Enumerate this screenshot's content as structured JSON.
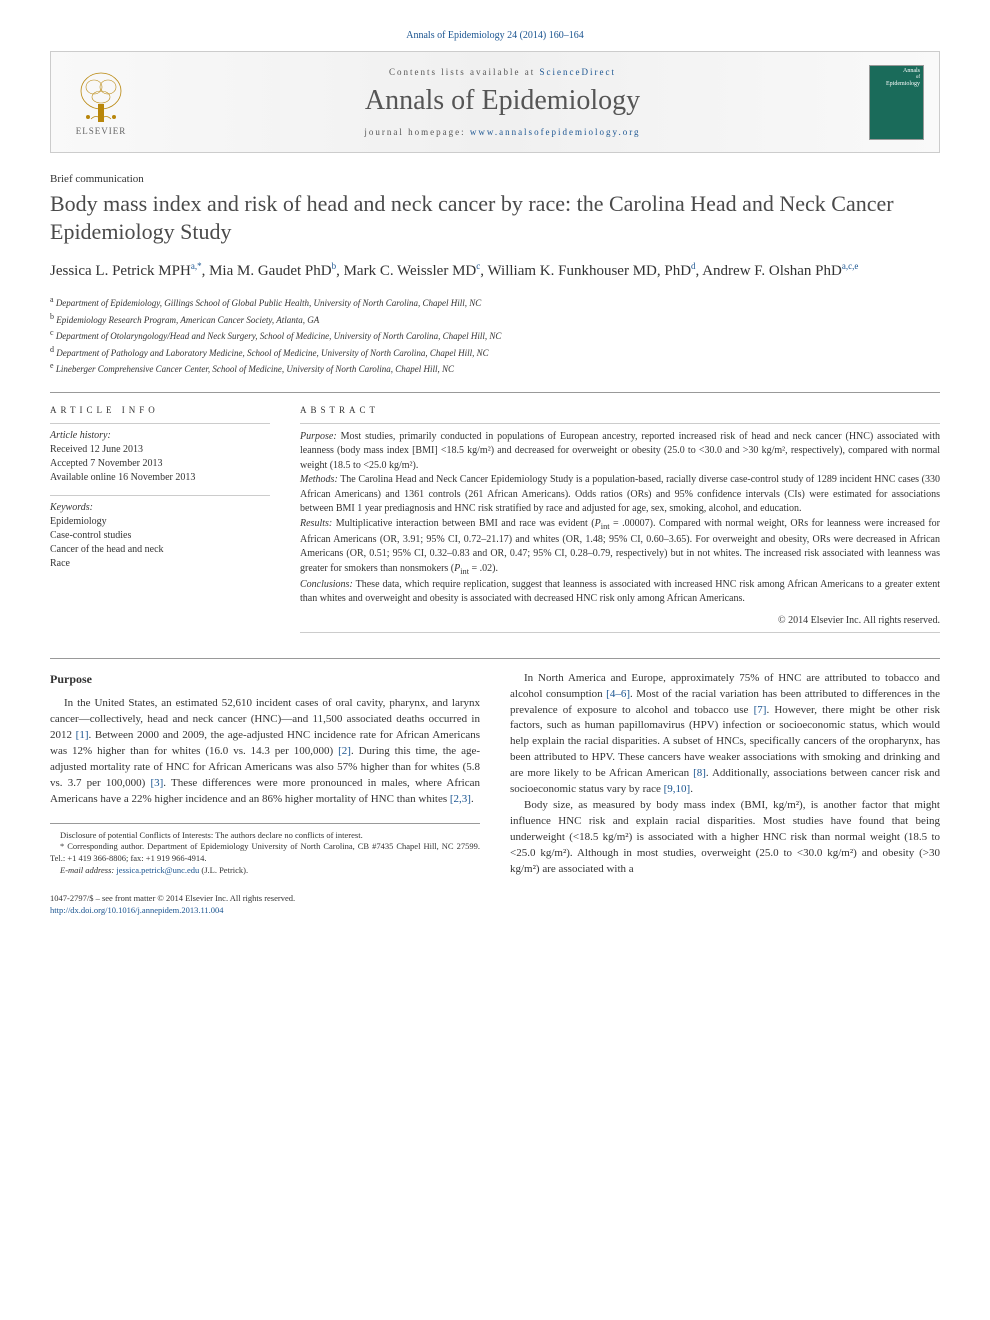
{
  "header": {
    "citation": "Annals of Epidemiology 24 (2014) 160–164"
  },
  "banner": {
    "publisher_name": "ELSEVIER",
    "contents_prefix": "Contents lists available at ",
    "contents_link": "ScienceDirect",
    "journal_name": "Annals of Epidemiology",
    "homepage_prefix": "journal homepage: ",
    "homepage_url": "www.annalsofepidemiology.org",
    "cover_label_line1": "Annals",
    "cover_label_line2": "Epidemiology",
    "cover_of": "of"
  },
  "article": {
    "section": "Brief communication",
    "title": "Body mass index and risk of head and neck cancer by race: the Carolina Head and Neck Cancer Epidemiology Study",
    "authors_html": "Jessica L. Petrick MPH|a,*|, Mia M. Gaudet PhD|b|, Mark C. Weissler MD|c|, William K. Funkhouser MD, PhD|d|, Andrew F. Olshan PhD|a,c,e|",
    "affiliations": [
      {
        "sup": "a",
        "text": "Department of Epidemiology, Gillings School of Global Public Health, University of North Carolina, Chapel Hill, NC"
      },
      {
        "sup": "b",
        "text": "Epidemiology Research Program, American Cancer Society, Atlanta, GA"
      },
      {
        "sup": "c",
        "text": "Department of Otolaryngology/Head and Neck Surgery, School of Medicine, University of North Carolina, Chapel Hill, NC"
      },
      {
        "sup": "d",
        "text": "Department of Pathology and Laboratory Medicine, School of Medicine, University of North Carolina, Chapel Hill, NC"
      },
      {
        "sup": "e",
        "text": "Lineberger Comprehensive Cancer Center, School of Medicine, University of North Carolina, Chapel Hill, NC"
      }
    ]
  },
  "info": {
    "heading": "ARTICLE INFO",
    "history_label": "Article history:",
    "history": "Received 12 June 2013\nAccepted 7 November 2013\nAvailable online 16 November 2013",
    "keywords_label": "Keywords:",
    "keywords": "Epidemiology\nCase-control studies\nCancer of the head and neck\nRace"
  },
  "abstract": {
    "heading": "ABSTRACT",
    "purpose_label": "Purpose:",
    "purpose": " Most studies, primarily conducted in populations of European ancestry, reported increased risk of head and neck cancer (HNC) associated with leanness (body mass index [BMI] <18.5 kg/m²) and decreased for overweight or obesity (25.0 to <30.0 and >30 kg/m², respectively), compared with normal weight (18.5 to <25.0 kg/m²).",
    "methods_label": "Methods:",
    "methods": " The Carolina Head and Neck Cancer Epidemiology Study is a population-based, racially diverse case-control study of 1289 incident HNC cases (330 African Americans) and 1361 controls (261 African Americans). Odds ratios (ORs) and 95% confidence intervals (CIs) were estimated for associations between BMI 1 year prediagnosis and HNC risk stratified by race and adjusted for age, sex, smoking, alcohol, and education.",
    "results_label": "Results:",
    "results": " Multiplicative interaction between BMI and race was evident (Pint = .00007). Compared with normal weight, ORs for leanness were increased for African Americans (OR, 3.91; 95% CI, 0.72–21.17) and whites (OR, 1.48; 95% CI, 0.60–3.65). For overweight and obesity, ORs were decreased in African Americans (OR, 0.51; 95% CI, 0.32–0.83 and OR, 0.47; 95% CI, 0.28–0.79, respectively) but in not whites. The increased risk associated with leanness was greater for smokers than nonsmokers (Pint = .02).",
    "conclusions_label": "Conclusions:",
    "conclusions": " These data, which require replication, suggest that leanness is associated with increased HNC risk among African Americans to a greater extent than whites and overweight and obesity is associated with decreased HNC risk only among African Americans.",
    "copyright": "© 2014 Elsevier Inc. All rights reserved."
  },
  "body": {
    "purpose_heading": "Purpose",
    "left_para": "In the United States, an estimated 52,610 incident cases of oral cavity, pharynx, and larynx cancer—collectively, head and neck cancer (HNC)—and 11,500 associated deaths occurred in 2012 [1]. Between 2000 and 2009, the age-adjusted HNC incidence rate for African Americans was 12% higher than for whites (16.0 vs. 14.3 per 100,000) [2]. During this time, the age-adjusted mortality rate of HNC for African Americans was also 57% higher than for whites (5.8 vs. 3.7 per 100,000) [3]. These differences were more pronounced in males, where African Americans have a 22% higher incidence and an 86% higher mortality of HNC than whites [2,3].",
    "right_para1": "In North America and Europe, approximately 75% of HNC are attributed to tobacco and alcohol consumption [4–6]. Most of the racial variation has been attributed to differences in the prevalence of exposure to alcohol and tobacco use [7]. However, there might be other risk factors, such as human papillomavirus (HPV) infection or socioeconomic status, which would help explain the racial disparities. A subset of HNCs, specifically cancers of the oropharynx, has been attributed to HPV. These cancers have weaker associations with smoking and drinking and are more likely to be African American [8]. Additionally, associations between cancer risk and socioeconomic status vary by race [9,10].",
    "right_para2": "Body size, as measured by body mass index (BMI, kg/m²), is another factor that might influence HNC risk and explain racial disparities. Most studies have found that being underweight (<18.5 kg/m²) is associated with a higher HNC risk than normal weight (18.5 to <25.0 kg/m²). Although in most studies, overweight (25.0 to <30.0 kg/m²) and obesity (>30 kg/m²) are associated with a"
  },
  "footnotes": {
    "conflicts": "Disclosure of potential Conflicts of Interests: The authors declare no conflicts of interest.",
    "corresponding": "* Corresponding author. Department of Epidemiology University of North Carolina, CB #7435 Chapel Hill, NC 27599. Tel.: +1 419 366-8806; fax: +1 919 966-4914.",
    "email_label": "E-mail address:",
    "email": "jessica.petrick@unc.edu",
    "email_suffix": " (J.L. Petrick)."
  },
  "footer": {
    "issn_line": "1047-2797/$ – see front matter © 2014 Elsevier Inc. All rights reserved.",
    "doi": "http://dx.doi.org/10.1016/j.annepidem.2013.11.004"
  },
  "colors": {
    "link": "#1a5490",
    "journal_cover": "#1a6b5a"
  }
}
